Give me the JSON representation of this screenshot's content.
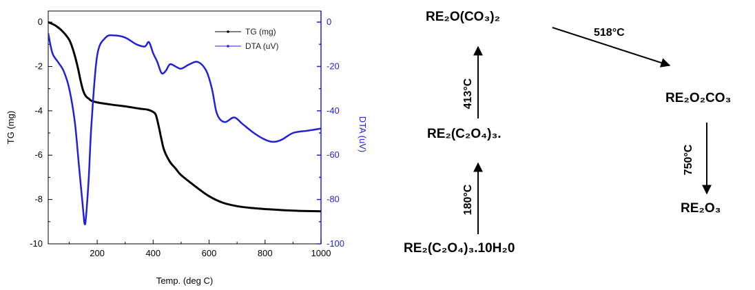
{
  "chart_data": {
    "type": "line",
    "xlabel": "Temp. (deg C)",
    "ylabel_left": "TG (mg)",
    "ylabel_right": "DTA (uV)",
    "xlim": [
      25,
      1000
    ],
    "ylim_left": [
      -10,
      0.5
    ],
    "ylim_right": [
      -100,
      5
    ],
    "x_ticks": [
      200,
      400,
      600,
      800,
      1000
    ],
    "y_left_ticks": [
      0,
      -2,
      -4,
      -6,
      -8,
      -10
    ],
    "y_right_ticks": [
      0,
      -20,
      -40,
      -60,
      -80,
      -100
    ],
    "right_axis_color": "#1f1fdc",
    "legend_position": "top-right",
    "series": [
      {
        "name": "TG (mg)",
        "axis": "left",
        "color": "#000000",
        "x": [
          25,
          50,
          75,
          100,
          115,
          130,
          140,
          150,
          160,
          170,
          180,
          200,
          250,
          300,
          350,
          380,
          400,
          410,
          420,
          430,
          440,
          460,
          480,
          500,
          550,
          600,
          650,
          700,
          750,
          800,
          850,
          900,
          950,
          1000
        ],
        "y": [
          0.0,
          -0.15,
          -0.4,
          -0.8,
          -1.3,
          -2.0,
          -2.6,
          -3.1,
          -3.35,
          -3.45,
          -3.55,
          -3.62,
          -3.72,
          -3.8,
          -3.9,
          -3.95,
          -4.05,
          -4.2,
          -4.7,
          -5.3,
          -5.8,
          -6.3,
          -6.6,
          -6.9,
          -7.4,
          -7.85,
          -8.15,
          -8.3,
          -8.38,
          -8.43,
          -8.47,
          -8.5,
          -8.52,
          -8.53
        ]
      },
      {
        "name": "DTA (uV)",
        "axis": "right",
        "color": "#1f1fdc",
        "x": [
          25,
          40,
          60,
          80,
          100,
          120,
          135,
          150,
          155,
          160,
          170,
          180,
          200,
          230,
          260,
          300,
          340,
          370,
          385,
          400,
          415,
          430,
          445,
          460,
          480,
          500,
          530,
          560,
          590,
          610,
          625,
          640,
          660,
          690,
          720,
          760,
          800,
          830,
          860,
          900,
          950,
          1000
        ],
        "y": [
          -5,
          -14,
          -18,
          -22,
          -30,
          -45,
          -65,
          -85,
          -91,
          -88,
          -70,
          -45,
          -15,
          -7,
          -6,
          -7,
          -10,
          -11,
          -9,
          -14,
          -18,
          -23,
          -22,
          -19,
          -20,
          -21,
          -19,
          -18,
          -22,
          -30,
          -40,
          -44,
          -45,
          -43,
          -46,
          -50,
          -53,
          -54,
          -53,
          -50,
          -49,
          -48
        ]
      }
    ]
  },
  "scheme": {
    "nodes": {
      "hydrate": "RE₂(C₂O₄)₃.10H₂0",
      "oxalate": "RE₂(C₂O₄)₃.",
      "dioxycarbonate": "RE₂O(CO₃)₂",
      "oxycarbonate": "RE₂O₂CO₃",
      "oxide": "RE₂O₃"
    },
    "temps": {
      "step1": "180°C",
      "step2": "413°C",
      "step3": "518°C",
      "step4": "750°C"
    }
  }
}
